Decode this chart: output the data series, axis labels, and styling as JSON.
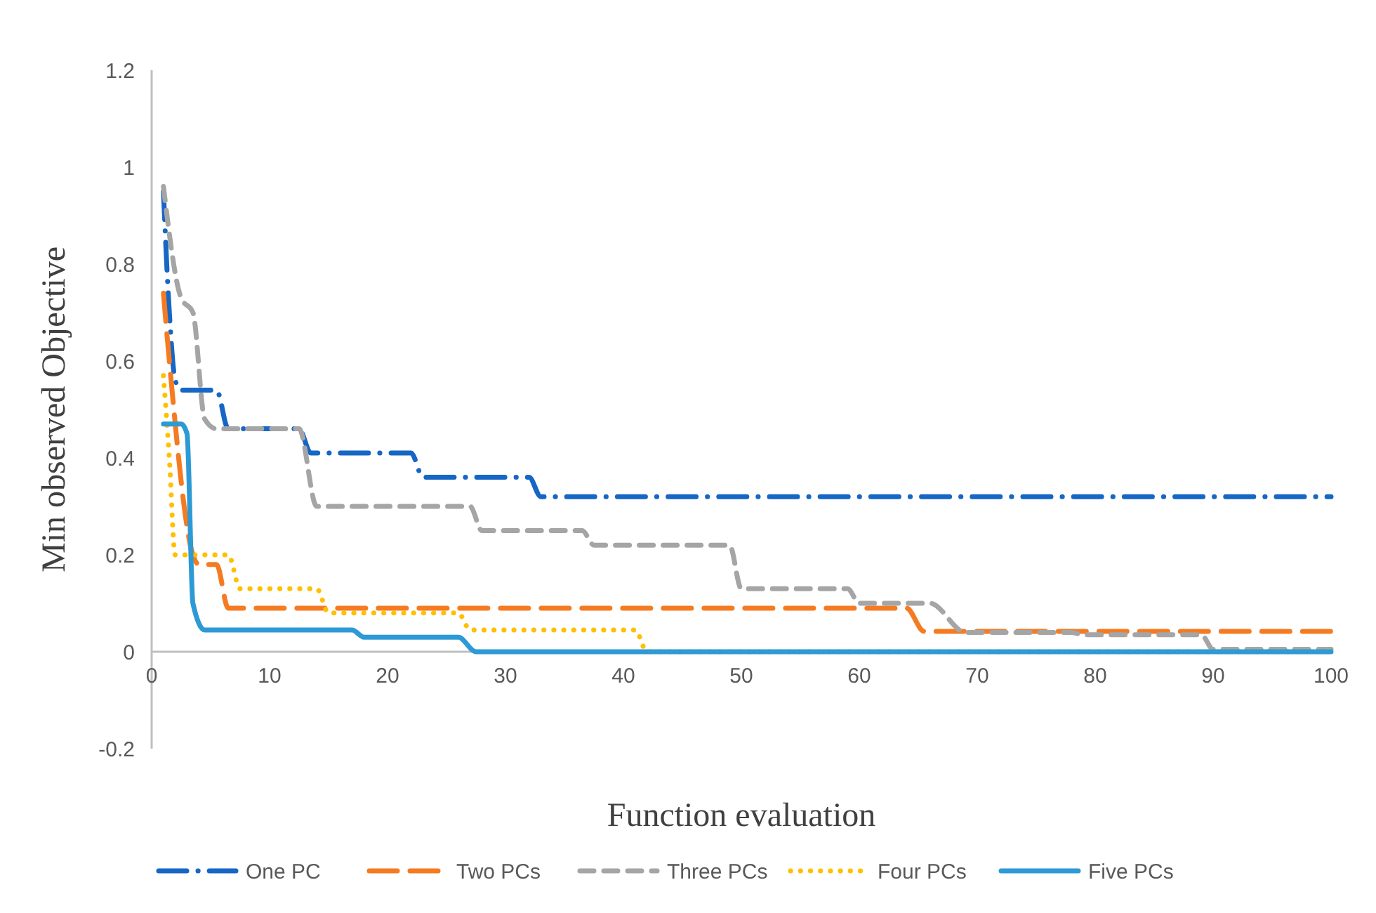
{
  "chart_data": {
    "type": "line",
    "xlabel": "Function evaluation",
    "ylabel": "Min observed Objective",
    "xlim": [
      0,
      100
    ],
    "ylim": [
      -0.2,
      1.2
    ],
    "xticks": [
      0,
      10,
      20,
      30,
      40,
      50,
      60,
      70,
      80,
      90,
      100
    ],
    "yticks": [
      -0.2,
      0,
      0.2,
      0.4,
      0.6,
      0.8,
      1,
      1.2
    ],
    "grid": false,
    "legend": "bottom",
    "marker": "none",
    "series": [
      {
        "name": "One PC",
        "color": "#1666c5",
        "line_style": "dashdot",
        "x": [
          1,
          1.5,
          2,
          2.5,
          5.5,
          6.5,
          12.5,
          13.5,
          22,
          23,
          32,
          33,
          100
        ],
        "values": [
          0.95,
          0.7,
          0.56,
          0.54,
          0.54,
          0.46,
          0.46,
          0.41,
          0.41,
          0.36,
          0.36,
          0.32,
          0.32
        ]
      },
      {
        "name": "Two PCs",
        "color": "#f57b22",
        "line_style": "longdash",
        "x": [
          1,
          1.5,
          3.5,
          4,
          5.5,
          6.5,
          64,
          65.5,
          100
        ],
        "values": [
          0.74,
          0.6,
          0.2,
          0.18,
          0.18,
          0.09,
          0.09,
          0.042,
          0.042
        ]
      },
      {
        "name": "Three PCs",
        "color": "#a5a5a5",
        "line_style": "dashed",
        "x": [
          1,
          2.5,
          3.5,
          4.5,
          5.5,
          12.5,
          14,
          27,
          28,
          36.5,
          37.5,
          49,
          50,
          59,
          60,
          66,
          69,
          78,
          79,
          89,
          90,
          100
        ],
        "values": [
          0.96,
          0.73,
          0.7,
          0.48,
          0.46,
          0.46,
          0.3,
          0.3,
          0.25,
          0.25,
          0.22,
          0.22,
          0.13,
          0.13,
          0.1,
          0.1,
          0.04,
          0.04,
          0.035,
          0.035,
          0.005,
          0.005
        ]
      },
      {
        "name": "Four PCs",
        "color": "#ffc000",
        "line_style": "dotted",
        "x": [
          1,
          1.5,
          2,
          5.5,
          6.5,
          7.5,
          14,
          15,
          26,
          27,
          41,
          42,
          100
        ],
        "values": [
          0.57,
          0.4,
          0.2,
          0.2,
          0.2,
          0.13,
          0.13,
          0.08,
          0.08,
          0.045,
          0.045,
          0,
          0
        ]
      },
      {
        "name": "Five PCs",
        "color": "#2d9ad6",
        "line_style": "solid",
        "x": [
          1,
          2.5,
          3,
          3.5,
          4.5,
          17,
          18,
          26,
          27.5,
          100
        ],
        "values": [
          0.47,
          0.47,
          0.45,
          0.1,
          0.045,
          0.045,
          0.03,
          0.03,
          0,
          0
        ]
      }
    ]
  }
}
